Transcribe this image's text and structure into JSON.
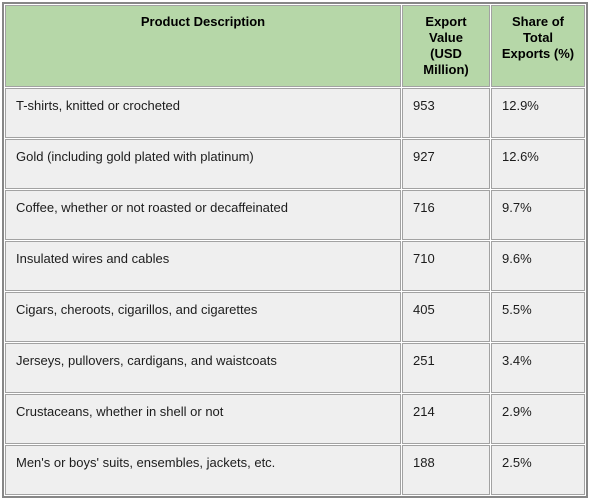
{
  "colors": {
    "header_bg": "#b6d7a8",
    "row_bg": "#efefef",
    "border": "#a2a2a2",
    "outer_border": "#878787"
  },
  "chart_data": {
    "type": "table",
    "columns": [
      "Product Description",
      "Export\nValue\n(USD\nMillion)",
      "Share of\nTotal\nExports (%)"
    ],
    "column_plain_labels": [
      "Product Description",
      "Export Value (USD Million)",
      "Share of Total Exports (%)"
    ],
    "rows": [
      [
        "T-shirts, knitted or crocheted",
        "953",
        "12.9%"
      ],
      [
        "Gold (including gold plated with platinum)",
        "927",
        "12.6%"
      ],
      [
        "Coffee, whether or not roasted or decaffeinated",
        "716",
        "9.7%"
      ],
      [
        "Insulated wires and cables",
        "710",
        "9.6%"
      ],
      [
        "Cigars, cheroots, cigarillos, and cigarettes",
        "405",
        "5.5%"
      ],
      [
        "Jerseys, pullovers, cardigans, and waistcoats",
        "251",
        "3.4%"
      ],
      [
        "Crustaceans, whether in shell or not",
        "214",
        "2.9%"
      ],
      [
        "Men's or boys' suits, ensembles, jackets, etc.",
        "188",
        "2.5%"
      ]
    ],
    "export_values_usd_million": [
      953,
      927,
      716,
      710,
      405,
      251,
      214,
      188
    ],
    "share_of_total_exports_pct": [
      12.9,
      12.6,
      9.7,
      9.6,
      5.5,
      3.4,
      2.9,
      2.5
    ]
  }
}
